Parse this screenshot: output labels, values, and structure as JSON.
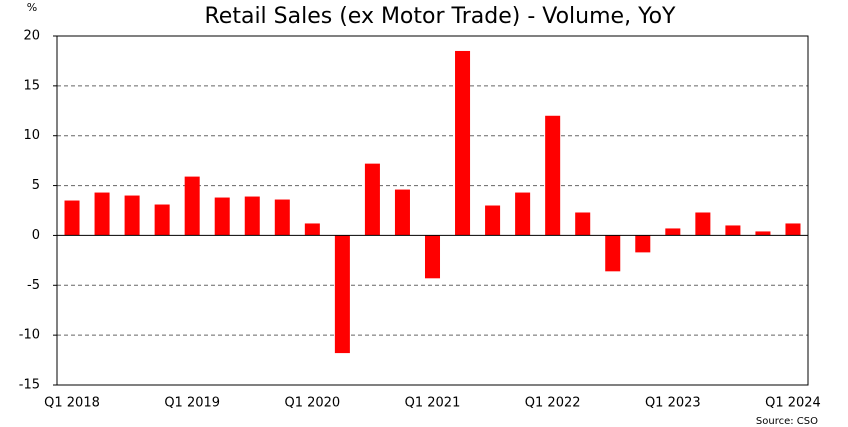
{
  "chart_data": {
    "type": "bar",
    "title": "Retail Sales  (ex Motor Trade) - Volume, YoY",
    "y_label": "%",
    "source": "Source: CSO",
    "categories": [
      "Q1 2018",
      null,
      null,
      null,
      "Q1 2019",
      null,
      null,
      null,
      "Q1 2020",
      null,
      null,
      null,
      "Q1 2021",
      null,
      null,
      null,
      "Q1 2022",
      null,
      null,
      null,
      "Q1 2023",
      null,
      null,
      null,
      "Q1 2024"
    ],
    "values": [
      3.5,
      4.3,
      4.0,
      3.1,
      5.9,
      3.8,
      3.9,
      3.6,
      1.2,
      -11.8,
      7.2,
      4.6,
      -4.3,
      18.5,
      3.0,
      4.3,
      12.0,
      2.3,
      -3.6,
      -1.7,
      0.7,
      2.3,
      1.0,
      0.4,
      1.2
    ],
    "color": "#ff0000",
    "ylim": [
      -15,
      20
    ],
    "yticks": [
      -15,
      -10,
      -5,
      0,
      5,
      10,
      15,
      20
    ],
    "grid": true
  }
}
